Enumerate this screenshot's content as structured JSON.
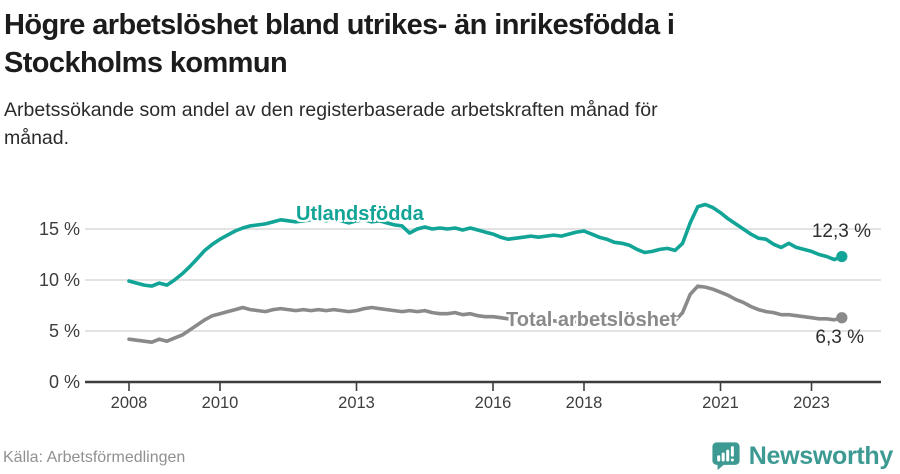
{
  "header": {
    "title_line1": "Högre arbetslöshet bland utrikes- än inrikesfödda i",
    "title_line2": "Stockholms kommun",
    "subtitle_line1": "Arbetssökande som andel av den registerbaserade arbetskraften månad för",
    "subtitle_line2": "månad."
  },
  "footer": {
    "source": "Källa: Arbetsförmedlingen",
    "brand": "Newsworthy"
  },
  "colors": {
    "teal_line": "#12a496",
    "gray_line": "#8a8a8a",
    "axis": "#3d3d3d",
    "grid": "#dadada",
    "tick_text": "#3e3e3e",
    "end_label_text": "#2e2e2e",
    "brand_teal": "#3d9a93",
    "title_text": "#1c1c1c",
    "source_text": "#909090"
  },
  "chart_data": {
    "type": "line",
    "title": "Högre arbetslöshet bland utrikes- än inrikesfödda i Stockholms kommun",
    "subtitle": "Arbetssökande som andel av den registerbaserade arbetskraften månad för månad.",
    "xlabel": "",
    "ylabel": "%",
    "grid": "horizontal",
    "legend_position": "inline-labels",
    "xlim": [
      2007.05,
      2024.55
    ],
    "ylim": [
      0,
      18.3
    ],
    "x_start": 2008.0,
    "x_step": 0.16667,
    "x_tick_years": [
      2008,
      2010,
      2013,
      2016,
      2018,
      2021,
      2023
    ],
    "x_tick_labels": [
      "2008",
      "2010",
      "2013",
      "2016",
      "2018",
      "2021",
      "2023"
    ],
    "y_ticks": [
      0,
      5,
      10,
      15
    ],
    "y_tick_labels": [
      "0 %",
      "5 %",
      "10 %",
      "15 %"
    ],
    "series": [
      {
        "name": "Utlandsfödda",
        "slug": "utlandsfodda",
        "color": "#12a496",
        "end_label": "12,3 %",
        "end_value": 12.3,
        "values": [
          9.9,
          9.7,
          9.5,
          9.4,
          9.7,
          9.5,
          10.0,
          10.6,
          11.3,
          12.1,
          12.9,
          13.5,
          14.0,
          14.4,
          14.8,
          15.1,
          15.3,
          15.4,
          15.5,
          15.7,
          15.9,
          15.8,
          15.7,
          15.8,
          15.9,
          16.0,
          15.8,
          16.0,
          15.8,
          15.6,
          15.8,
          15.9,
          15.7,
          15.8,
          15.6,
          15.4,
          15.3,
          14.6,
          15.0,
          15.2,
          15.0,
          15.1,
          15.0,
          15.1,
          14.9,
          15.1,
          14.9,
          14.7,
          14.5,
          14.2,
          14.0,
          14.1,
          14.2,
          14.3,
          14.2,
          14.3,
          14.4,
          14.3,
          14.5,
          14.7,
          14.8,
          14.5,
          14.2,
          14.0,
          13.7,
          13.6,
          13.4,
          13.0,
          12.7,
          12.8,
          13.0,
          13.1,
          12.9,
          13.6,
          15.6,
          17.2,
          17.4,
          17.1,
          16.6,
          16.0,
          15.5,
          15.0,
          14.5,
          14.1,
          14.0,
          13.5,
          13.2,
          13.6,
          13.2,
          13.0,
          12.8,
          12.5,
          12.3,
          12.0,
          12.3
        ]
      },
      {
        "name": "Total arbetslöshet",
        "slug": "total-arbetsloshet",
        "color": "#8a8a8a",
        "end_label": "6,3 %",
        "end_value": 6.3,
        "values": [
          4.2,
          4.1,
          4.0,
          3.9,
          4.2,
          4.0,
          4.3,
          4.6,
          5.1,
          5.6,
          6.1,
          6.5,
          6.7,
          6.9,
          7.1,
          7.3,
          7.1,
          7.0,
          6.9,
          7.1,
          7.2,
          7.1,
          7.0,
          7.1,
          7.0,
          7.1,
          7.0,
          7.1,
          7.0,
          6.9,
          7.0,
          7.2,
          7.3,
          7.2,
          7.1,
          7.0,
          6.9,
          7.0,
          6.9,
          7.0,
          6.8,
          6.7,
          6.7,
          6.8,
          6.6,
          6.7,
          6.5,
          6.4,
          6.4,
          6.3,
          6.2,
          6.1,
          6.1,
          6.0,
          6.0,
          6.1,
          6.0,
          5.9,
          6.0,
          5.9,
          5.9,
          5.8,
          5.8,
          5.7,
          5.8,
          5.7,
          5.7,
          5.6,
          5.6,
          5.7,
          5.8,
          5.9,
          6.0,
          6.8,
          8.6,
          9.4,
          9.3,
          9.1,
          8.8,
          8.5,
          8.1,
          7.8,
          7.4,
          7.1,
          6.9,
          6.8,
          6.6,
          6.6,
          6.5,
          6.4,
          6.3,
          6.2,
          6.2,
          6.1,
          6.3
        ]
      }
    ]
  }
}
